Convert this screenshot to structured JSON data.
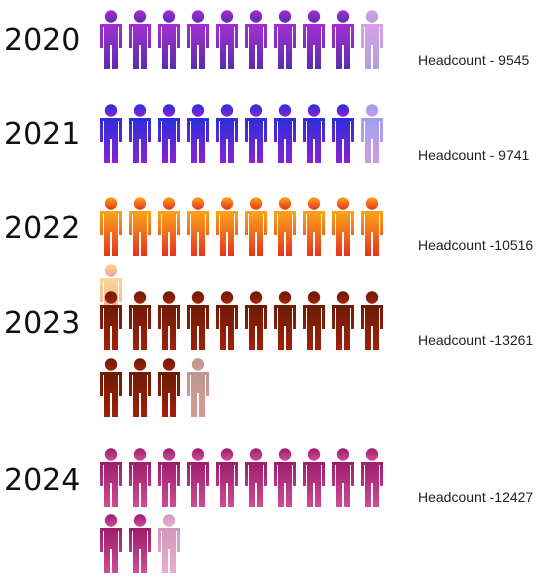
{
  "chart_data": {
    "type": "pictograph",
    "unit_note": "",
    "rows": [
      {
        "year": "2020",
        "label_prefix": "Headcount - ",
        "value": 9545,
        "value_text": "9545",
        "icons": 9.5,
        "colors": [
          "#a42ed0",
          "#5a2db0"
        ]
      },
      {
        "year": "2021",
        "label_prefix": "Headcount - ",
        "value": 9741,
        "value_text": "9741",
        "icons": 9.7,
        "colors": [
          "#2b2ed8",
          "#8a22d6"
        ]
      },
      {
        "year": "2022",
        "label_prefix": "Headcount -",
        "value": 10516,
        "value_text": "10516",
        "icons": 10.5,
        "colors": [
          "#f9a61a",
          "#e8321e"
        ]
      },
      {
        "year": "2023",
        "label_prefix": "Headcount -",
        "value": 13261,
        "value_text": "13261",
        "icons": 13.3,
        "colors": [
          "#6b1b06",
          "#a3200a"
        ]
      },
      {
        "year": "2024",
        "label_prefix": "Headcount -",
        "value": 12427,
        "value_text": "12427",
        "icons": 12.4,
        "colors": [
          "#9b1e6a",
          "#d04a98"
        ]
      }
    ]
  }
}
